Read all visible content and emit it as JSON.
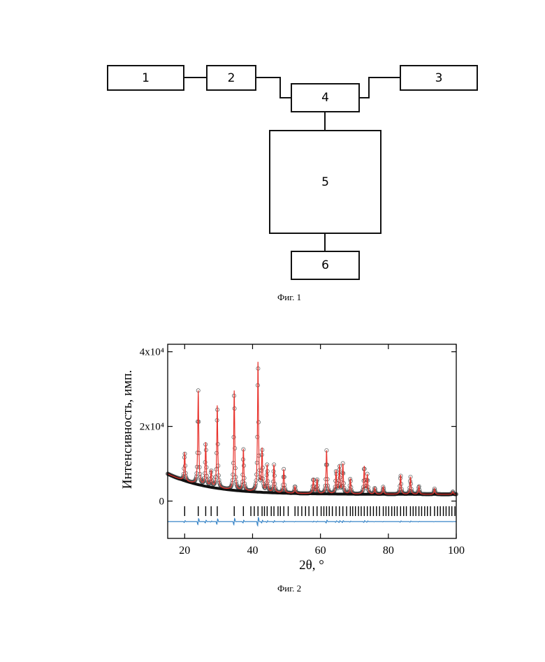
{
  "figure1": {
    "caption": "Фиг. 1",
    "blocks": {
      "b1": "1",
      "b2": "2",
      "b3": "3",
      "b4": "4",
      "b5": "5",
      "b6": "6"
    }
  },
  "figure2": {
    "caption": "Фиг. 2"
  },
  "chart_data": {
    "type": "line",
    "xlabel": "2θ, °",
    "ylabel": "Интенсивность, имп.",
    "xlim": [
      15,
      100
    ],
    "ylim": [
      -10000,
      42000
    ],
    "xticks": [
      20,
      40,
      60,
      80,
      100
    ],
    "yticks": [
      {
        "value": 0,
        "label": "0"
      },
      {
        "value": 20000,
        "label": "2x10⁴"
      },
      {
        "value": 40000,
        "label": "4x10⁴"
      }
    ],
    "grid": false,
    "background": {
      "x0": 15,
      "y0": 7300,
      "floor": 1800,
      "decay": 12
    },
    "peaks": [
      {
        "x": 20.0,
        "y": 13000
      },
      {
        "x": 24.0,
        "y": 29500
      },
      {
        "x": 26.2,
        "y": 15500
      },
      {
        "x": 27.8,
        "y": 8000
      },
      {
        "x": 29.6,
        "y": 25500
      },
      {
        "x": 34.6,
        "y": 29500
      },
      {
        "x": 37.3,
        "y": 13800
      },
      {
        "x": 41.6,
        "y": 37000
      },
      {
        "x": 42.8,
        "y": 13500
      },
      {
        "x": 44.3,
        "y": 9500
      },
      {
        "x": 46.3,
        "y": 9700
      },
      {
        "x": 49.2,
        "y": 8500
      },
      {
        "x": 52.5,
        "y": 4000
      },
      {
        "x": 57.9,
        "y": 6000
      },
      {
        "x": 59.0,
        "y": 5800
      },
      {
        "x": 61.8,
        "y": 13500
      },
      {
        "x": 64.6,
        "y": 8000
      },
      {
        "x": 65.6,
        "y": 9300
      },
      {
        "x": 66.6,
        "y": 9800
      },
      {
        "x": 68.8,
        "y": 6000
      },
      {
        "x": 72.9,
        "y": 9200
      },
      {
        "x": 73.8,
        "y": 7000
      },
      {
        "x": 76.0,
        "y": 3500
      },
      {
        "x": 78.5,
        "y": 3800
      },
      {
        "x": 83.6,
        "y": 7000
      },
      {
        "x": 86.5,
        "y": 6500
      },
      {
        "x": 89.0,
        "y": 4000
      },
      {
        "x": 93.6,
        "y": 3300
      },
      {
        "x": 99.0,
        "y": 2500
      }
    ],
    "reflection_ticks": [
      20.0,
      24.0,
      26.2,
      27.8,
      29.6,
      34.6,
      37.3,
      39.5,
      40.5,
      41.6,
      42.8,
      43.5,
      44.3,
      45.5,
      46.3,
      47.5,
      48.2,
      49.2,
      50.5,
      52.5,
      53.4,
      54.5,
      55.6,
      56.6,
      57.9,
      59.0,
      60.2,
      61.0,
      61.8,
      62.6,
      63.5,
      64.6,
      65.6,
      66.6,
      67.7,
      68.8,
      69.5,
      70.3,
      71.2,
      72.0,
      72.9,
      73.8,
      74.7,
      75.6,
      76.5,
      77.4,
      78.5,
      79.3,
      80.1,
      81.0,
      81.8,
      82.6,
      83.6,
      84.5,
      85.3,
      86.5,
      87.3,
      88.1,
      89.0,
      89.8,
      90.7,
      91.5,
      92.4,
      93.6,
      94.5,
      95.3,
      96.2,
      97.0,
      97.9,
      98.7,
      99.6
    ],
    "reflection_ticks_level": -2700,
    "difference_baseline": -5500,
    "series": [
      {
        "role": "observed",
        "style": "open circles",
        "color": "#222222"
      },
      {
        "role": "calculated",
        "style": "line",
        "color": "#e8322c"
      },
      {
        "role": "difference",
        "style": "line",
        "color": "#3a86c8"
      },
      {
        "role": "background",
        "style": "thick line",
        "color": "#111111"
      }
    ]
  }
}
